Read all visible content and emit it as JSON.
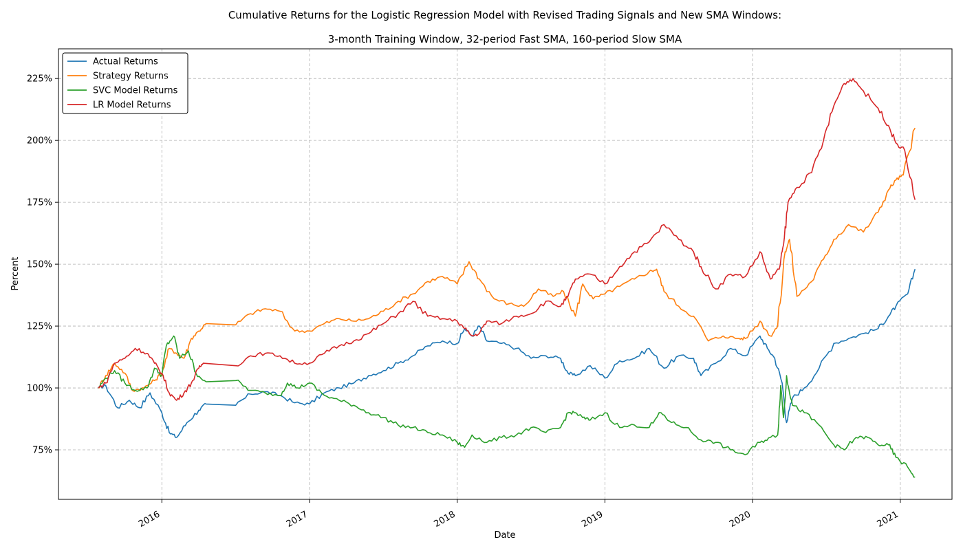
{
  "chart_data": {
    "type": "line",
    "title": "Cumulative Returns for the Logistic Regression Model with Revised Trading Signals and New SMA Windows:",
    "subtitle": "3-month Training Window, 32-period Fast SMA, 160-period Slow SMA",
    "xlabel": "Date",
    "ylabel": "Percent",
    "xlim": [
      2015.3,
      2021.35
    ],
    "ylim": [
      0.55,
      2.37
    ],
    "x_ticks": [
      2016,
      2017,
      2018,
      2019,
      2020,
      2021
    ],
    "x_tick_labels": [
      "2016",
      "2017",
      "2018",
      "2019",
      "2020",
      "2021"
    ],
    "y_ticks": [
      0.75,
      1.0,
      1.25,
      1.5,
      1.75,
      2.0,
      2.25
    ],
    "y_tick_labels": [
      "75%",
      "100%",
      "125%",
      "150%",
      "175%",
      "200%",
      "225%"
    ],
    "grid": true,
    "legend_position": "top-left",
    "series": [
      {
        "name": "Actual Returns",
        "color": "#1f77b4",
        "points": [
          [
            2015.57,
            1.0
          ],
          [
            2015.62,
            1.01
          ],
          [
            2015.7,
            0.92
          ],
          [
            2015.78,
            0.95
          ],
          [
            2015.85,
            0.92
          ],
          [
            2015.92,
            0.98
          ],
          [
            2016.0,
            0.9
          ],
          [
            2016.05,
            0.82
          ],
          [
            2016.1,
            0.8
          ],
          [
            2016.17,
            0.86
          ],
          [
            2016.25,
            0.91
          ],
          [
            2016.3,
            0.935
          ],
          [
            2016.5,
            0.93
          ],
          [
            2016.6,
            0.975
          ],
          [
            2016.7,
            0.985
          ],
          [
            2016.8,
            0.97
          ],
          [
            2016.9,
            0.94
          ],
          [
            2017.0,
            0.935
          ],
          [
            2017.1,
            0.98
          ],
          [
            2017.2,
            1.0
          ],
          [
            2017.3,
            1.02
          ],
          [
            2017.4,
            1.05
          ],
          [
            2017.5,
            1.07
          ],
          [
            2017.6,
            1.1
          ],
          [
            2017.7,
            1.13
          ],
          [
            2017.8,
            1.17
          ],
          [
            2017.9,
            1.19
          ],
          [
            2018.0,
            1.18
          ],
          [
            2018.05,
            1.24
          ],
          [
            2018.1,
            1.21
          ],
          [
            2018.15,
            1.25
          ],
          [
            2018.2,
            1.19
          ],
          [
            2018.3,
            1.18
          ],
          [
            2018.4,
            1.16
          ],
          [
            2018.5,
            1.12
          ],
          [
            2018.6,
            1.13
          ],
          [
            2018.7,
            1.12
          ],
          [
            2018.75,
            1.06
          ],
          [
            2018.8,
            1.05
          ],
          [
            2018.9,
            1.09
          ],
          [
            2019.0,
            1.04
          ],
          [
            2019.1,
            1.11
          ],
          [
            2019.2,
            1.12
          ],
          [
            2019.3,
            1.16
          ],
          [
            2019.4,
            1.08
          ],
          [
            2019.5,
            1.13
          ],
          [
            2019.6,
            1.12
          ],
          [
            2019.65,
            1.05
          ],
          [
            2019.75,
            1.1
          ],
          [
            2019.85,
            1.16
          ],
          [
            2019.95,
            1.13
          ],
          [
            2020.05,
            1.21
          ],
          [
            2020.1,
            1.16
          ],
          [
            2020.15,
            1.12
          ],
          [
            2020.2,
            1.02
          ],
          [
            2020.23,
            0.86
          ],
          [
            2020.27,
            0.96
          ],
          [
            2020.35,
            1.0
          ],
          [
            2020.45,
            1.08
          ],
          [
            2020.55,
            1.18
          ],
          [
            2020.65,
            1.2
          ],
          [
            2020.75,
            1.22
          ],
          [
            2020.85,
            1.24
          ],
          [
            2020.92,
            1.29
          ],
          [
            2020.97,
            1.33
          ],
          [
            2021.05,
            1.38
          ],
          [
            2021.1,
            1.48
          ]
        ]
      },
      {
        "name": "Strategy Returns",
        "color": "#ff7f0e",
        "points": [
          [
            2015.57,
            1.0
          ],
          [
            2015.62,
            1.05
          ],
          [
            2015.68,
            1.1
          ],
          [
            2015.75,
            1.06
          ],
          [
            2015.8,
            0.99
          ],
          [
            2015.88,
            1.0
          ],
          [
            2015.95,
            1.03
          ],
          [
            2016.0,
            1.06
          ],
          [
            2016.05,
            1.16
          ],
          [
            2016.1,
            1.14
          ],
          [
            2016.15,
            1.12
          ],
          [
            2016.2,
            1.2
          ],
          [
            2016.25,
            1.23
          ],
          [
            2016.3,
            1.26
          ],
          [
            2016.5,
            1.255
          ],
          [
            2016.6,
            1.3
          ],
          [
            2016.7,
            1.32
          ],
          [
            2016.8,
            1.31
          ],
          [
            2016.9,
            1.23
          ],
          [
            2017.0,
            1.23
          ],
          [
            2017.1,
            1.26
          ],
          [
            2017.2,
            1.28
          ],
          [
            2017.3,
            1.27
          ],
          [
            2017.4,
            1.28
          ],
          [
            2017.5,
            1.31
          ],
          [
            2017.6,
            1.35
          ],
          [
            2017.7,
            1.38
          ],
          [
            2017.8,
            1.43
          ],
          [
            2017.9,
            1.45
          ],
          [
            2018.0,
            1.42
          ],
          [
            2018.08,
            1.51
          ],
          [
            2018.15,
            1.44
          ],
          [
            2018.25,
            1.36
          ],
          [
            2018.35,
            1.34
          ],
          [
            2018.45,
            1.33
          ],
          [
            2018.55,
            1.4
          ],
          [
            2018.65,
            1.37
          ],
          [
            2018.72,
            1.39
          ],
          [
            2018.8,
            1.29
          ],
          [
            2018.85,
            1.42
          ],
          [
            2018.92,
            1.36
          ],
          [
            2019.0,
            1.38
          ],
          [
            2019.1,
            1.41
          ],
          [
            2019.2,
            1.44
          ],
          [
            2019.3,
            1.47
          ],
          [
            2019.35,
            1.48
          ],
          [
            2019.4,
            1.39
          ],
          [
            2019.5,
            1.33
          ],
          [
            2019.6,
            1.29
          ],
          [
            2019.7,
            1.19
          ],
          [
            2019.8,
            1.21
          ],
          [
            2019.9,
            1.2
          ],
          [
            2019.95,
            1.2
          ],
          [
            2020.05,
            1.27
          ],
          [
            2020.12,
            1.21
          ],
          [
            2020.17,
            1.25
          ],
          [
            2020.22,
            1.55
          ],
          [
            2020.25,
            1.6
          ],
          [
            2020.3,
            1.37
          ],
          [
            2020.4,
            1.43
          ],
          [
            2020.48,
            1.52
          ],
          [
            2020.55,
            1.6
          ],
          [
            2020.65,
            1.66
          ],
          [
            2020.75,
            1.63
          ],
          [
            2020.85,
            1.71
          ],
          [
            2020.92,
            1.8
          ],
          [
            2020.97,
            1.84
          ],
          [
            2021.02,
            1.86
          ],
          [
            2021.1,
            2.05
          ]
        ]
      },
      {
        "name": "SVC Model Returns",
        "color": "#2ca02c",
        "points": [
          [
            2015.57,
            1.0
          ],
          [
            2015.62,
            1.04
          ],
          [
            2015.68,
            1.07
          ],
          [
            2015.75,
            1.02
          ],
          [
            2015.82,
            0.99
          ],
          [
            2015.9,
            1.0
          ],
          [
            2015.95,
            1.08
          ],
          [
            2016.0,
            1.05
          ],
          [
            2016.03,
            1.17
          ],
          [
            2016.08,
            1.21
          ],
          [
            2016.12,
            1.12
          ],
          [
            2016.18,
            1.15
          ],
          [
            2016.23,
            1.06
          ],
          [
            2016.3,
            1.025
          ],
          [
            2016.5,
            1.03
          ],
          [
            2016.6,
            0.99
          ],
          [
            2016.7,
            0.98
          ],
          [
            2016.8,
            0.97
          ],
          [
            2016.85,
            1.02
          ],
          [
            2016.92,
            1.0
          ],
          [
            2017.0,
            1.02
          ],
          [
            2017.1,
            0.97
          ],
          [
            2017.2,
            0.95
          ],
          [
            2017.3,
            0.93
          ],
          [
            2017.4,
            0.9
          ],
          [
            2017.5,
            0.88
          ],
          [
            2017.6,
            0.85
          ],
          [
            2017.7,
            0.84
          ],
          [
            2017.8,
            0.82
          ],
          [
            2017.9,
            0.81
          ],
          [
            2018.0,
            0.78
          ],
          [
            2018.05,
            0.76
          ],
          [
            2018.1,
            0.81
          ],
          [
            2018.2,
            0.78
          ],
          [
            2018.3,
            0.8
          ],
          [
            2018.4,
            0.81
          ],
          [
            2018.5,
            0.84
          ],
          [
            2018.6,
            0.82
          ],
          [
            2018.7,
            0.84
          ],
          [
            2018.75,
            0.9
          ],
          [
            2018.8,
            0.9
          ],
          [
            2018.85,
            0.88
          ],
          [
            2018.9,
            0.87
          ],
          [
            2019.0,
            0.9
          ],
          [
            2019.1,
            0.84
          ],
          [
            2019.2,
            0.85
          ],
          [
            2019.3,
            0.84
          ],
          [
            2019.38,
            0.9
          ],
          [
            2019.45,
            0.86
          ],
          [
            2019.55,
            0.84
          ],
          [
            2019.65,
            0.79
          ],
          [
            2019.75,
            0.78
          ],
          [
            2019.85,
            0.75
          ],
          [
            2019.95,
            0.73
          ],
          [
            2020.05,
            0.78
          ],
          [
            2020.12,
            0.8
          ],
          [
            2020.17,
            0.81
          ],
          [
            2020.19,
            1.01
          ],
          [
            2020.21,
            0.88
          ],
          [
            2020.23,
            1.05
          ],
          [
            2020.27,
            0.93
          ],
          [
            2020.35,
            0.9
          ],
          [
            2020.45,
            0.85
          ],
          [
            2020.55,
            0.77
          ],
          [
            2020.62,
            0.75
          ],
          [
            2020.7,
            0.8
          ],
          [
            2020.78,
            0.8
          ],
          [
            2020.85,
            0.77
          ],
          [
            2020.92,
            0.77
          ],
          [
            2020.97,
            0.72
          ],
          [
            2021.05,
            0.68
          ],
          [
            2021.1,
            0.64
          ]
        ]
      },
      {
        "name": "LR Model Returns",
        "color": "#d62728",
        "points": [
          [
            2015.57,
            1.0
          ],
          [
            2015.62,
            1.02
          ],
          [
            2015.68,
            1.1
          ],
          [
            2015.75,
            1.12
          ],
          [
            2015.82,
            1.16
          ],
          [
            2015.9,
            1.14
          ],
          [
            2015.95,
            1.1
          ],
          [
            2016.0,
            1.06
          ],
          [
            2016.05,
            0.98
          ],
          [
            2016.1,
            0.95
          ],
          [
            2016.15,
            0.98
          ],
          [
            2016.2,
            1.02
          ],
          [
            2016.25,
            1.08
          ],
          [
            2016.28,
            1.1
          ],
          [
            2016.5,
            1.09
          ],
          [
            2016.6,
            1.13
          ],
          [
            2016.7,
            1.14
          ],
          [
            2016.8,
            1.13
          ],
          [
            2016.9,
            1.1
          ],
          [
            2017.0,
            1.1
          ],
          [
            2017.1,
            1.14
          ],
          [
            2017.2,
            1.17
          ],
          [
            2017.3,
            1.19
          ],
          [
            2017.4,
            1.22
          ],
          [
            2017.5,
            1.26
          ],
          [
            2017.6,
            1.3
          ],
          [
            2017.7,
            1.35
          ],
          [
            2017.8,
            1.29
          ],
          [
            2017.9,
            1.28
          ],
          [
            2018.0,
            1.27
          ],
          [
            2018.05,
            1.24
          ],
          [
            2018.1,
            1.21
          ],
          [
            2018.15,
            1.22
          ],
          [
            2018.2,
            1.27
          ],
          [
            2018.3,
            1.26
          ],
          [
            2018.4,
            1.29
          ],
          [
            2018.5,
            1.3
          ],
          [
            2018.6,
            1.35
          ],
          [
            2018.7,
            1.33
          ],
          [
            2018.75,
            1.37
          ],
          [
            2018.8,
            1.44
          ],
          [
            2018.9,
            1.46
          ],
          [
            2019.0,
            1.42
          ],
          [
            2019.1,
            1.49
          ],
          [
            2019.2,
            1.55
          ],
          [
            2019.3,
            1.59
          ],
          [
            2019.4,
            1.66
          ],
          [
            2019.5,
            1.6
          ],
          [
            2019.6,
            1.55
          ],
          [
            2019.65,
            1.49
          ],
          [
            2019.75,
            1.4
          ],
          [
            2019.85,
            1.46
          ],
          [
            2019.95,
            1.45
          ],
          [
            2020.05,
            1.55
          ],
          [
            2020.12,
            1.44
          ],
          [
            2020.18,
            1.48
          ],
          [
            2020.21,
            1.58
          ],
          [
            2020.24,
            1.75
          ],
          [
            2020.3,
            1.81
          ],
          [
            2020.4,
            1.87
          ],
          [
            2020.48,
            2.0
          ],
          [
            2020.55,
            2.14
          ],
          [
            2020.62,
            2.23
          ],
          [
            2020.68,
            2.25
          ],
          [
            2020.75,
            2.2
          ],
          [
            2020.85,
            2.13
          ],
          [
            2020.92,
            2.06
          ],
          [
            2020.97,
            1.99
          ],
          [
            2021.03,
            1.96
          ],
          [
            2021.1,
            1.76
          ]
        ]
      }
    ]
  }
}
